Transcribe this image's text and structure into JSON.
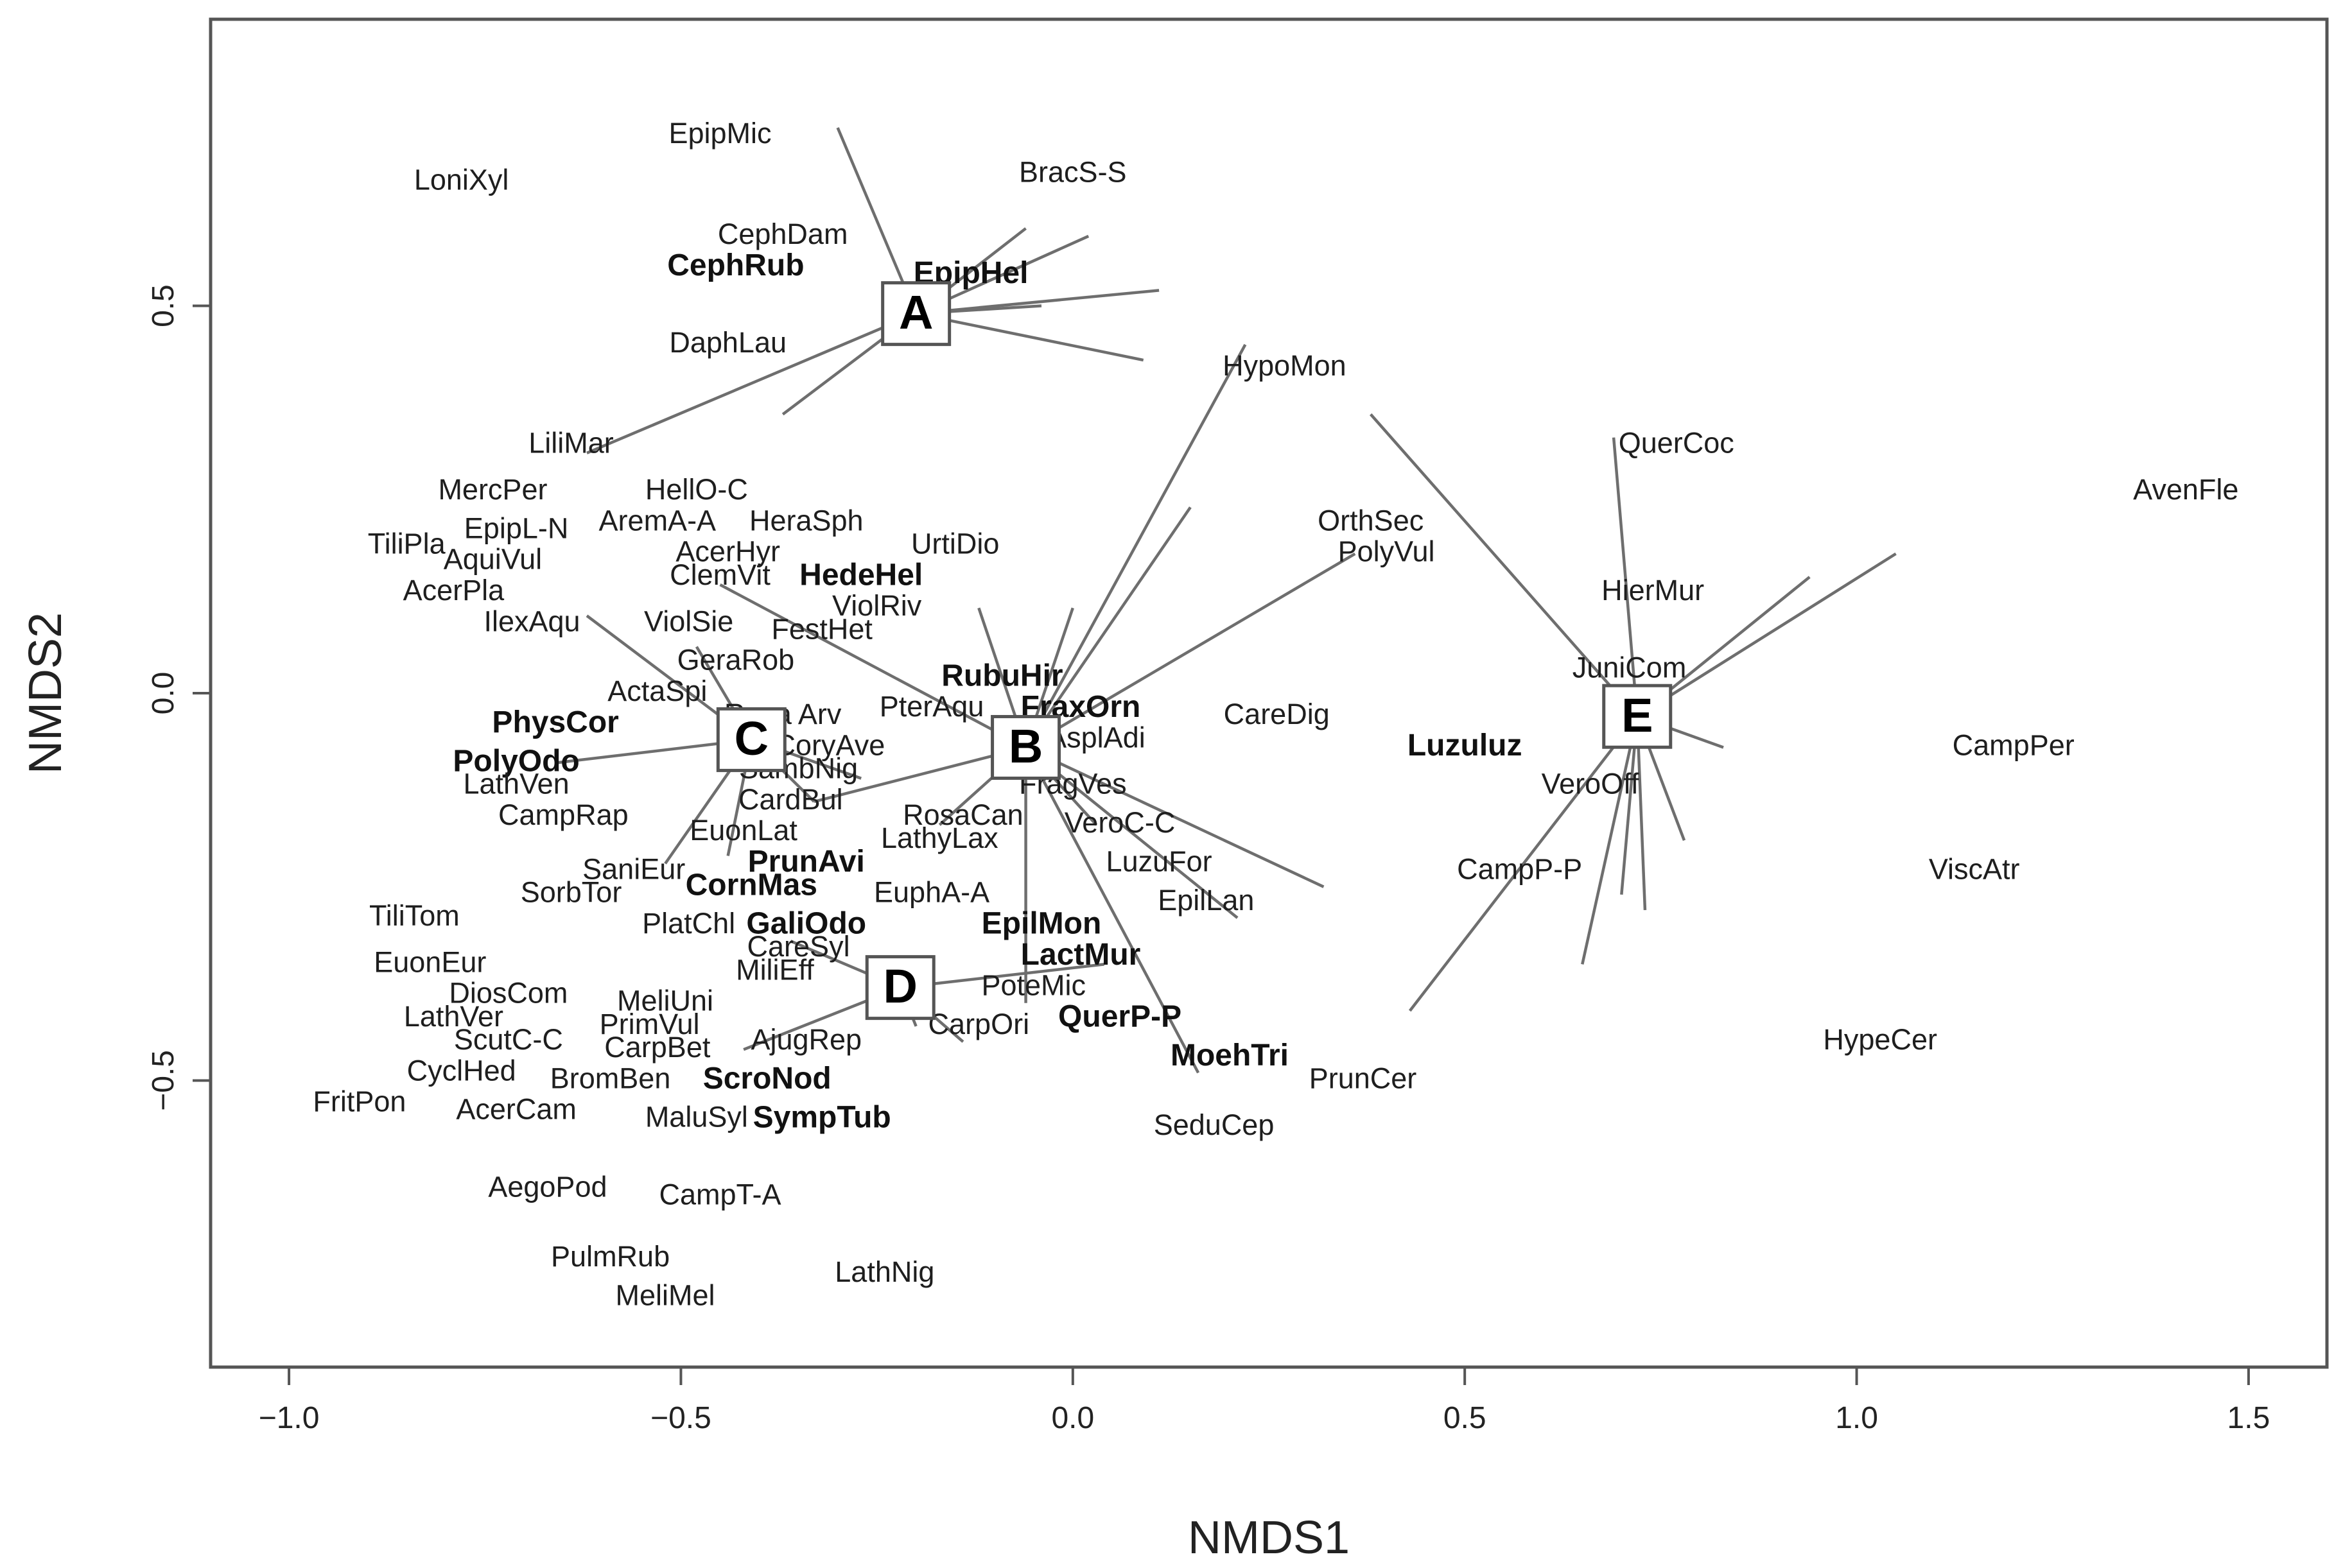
{
  "chart_data": {
    "type": "scatter",
    "xlabel": "NMDS1",
    "ylabel": "NMDS2",
    "xlim": [
      -1.1,
      1.6
    ],
    "ylim": [
      -0.87,
      0.87
    ],
    "x_ticks": [
      -1.0,
      -0.5,
      0.0,
      0.5,
      1.0,
      1.5
    ],
    "x_tick_labels": [
      "−1.0",
      "−0.5",
      "0.0",
      "0.5",
      "1.0",
      "1.5"
    ],
    "y_ticks": [
      -0.5,
      0.0,
      0.5
    ],
    "y_tick_labels": [
      "−0.5",
      "0.0",
      "0.5"
    ],
    "grid": false,
    "centroids": [
      {
        "label": "A",
        "x": -0.2,
        "y": 0.49
      },
      {
        "label": "B",
        "x": -0.06,
        "y": -0.07
      },
      {
        "label": "C",
        "x": -0.41,
        "y": -0.06
      },
      {
        "label": "D",
        "x": -0.22,
        "y": -0.38
      },
      {
        "label": "E",
        "x": 0.72,
        "y": -0.03
      }
    ],
    "spokes": [
      {
        "group": "A",
        "to": [
          -0.3,
          0.73
        ]
      },
      {
        "group": "A",
        "to": [
          -0.06,
          0.6
        ]
      },
      {
        "group": "A",
        "to": [
          0.02,
          0.59
        ]
      },
      {
        "group": "A",
        "to": [
          0.11,
          0.52
        ]
      },
      {
        "group": "A",
        "to": [
          -0.04,
          0.5
        ]
      },
      {
        "group": "A",
        "to": [
          0.09,
          0.43
        ]
      },
      {
        "group": "A",
        "to": [
          -0.62,
          0.31
        ]
      },
      {
        "group": "A",
        "to": [
          -0.37,
          0.36
        ]
      },
      {
        "group": "B",
        "to": [
          0.22,
          0.45
        ]
      },
      {
        "group": "B",
        "to": [
          0.15,
          0.24
        ]
      },
      {
        "group": "B",
        "to": [
          0.36,
          0.18
        ]
      },
      {
        "group": "B",
        "to": [
          0.0,
          0.11
        ]
      },
      {
        "group": "B",
        "to": [
          -0.45,
          0.14
        ]
      },
      {
        "group": "B",
        "to": [
          -0.12,
          0.11
        ]
      },
      {
        "group": "B",
        "to": [
          0.32,
          -0.25
        ]
      },
      {
        "group": "B",
        "to": [
          0.21,
          -0.29
        ]
      },
      {
        "group": "B",
        "to": [
          0.16,
          -0.49
        ]
      },
      {
        "group": "B",
        "to": [
          -0.06,
          -0.4
        ]
      },
      {
        "group": "B",
        "to": [
          0.03,
          -0.17
        ]
      },
      {
        "group": "B",
        "to": [
          -0.17,
          -0.17
        ]
      },
      {
        "group": "B",
        "to": [
          -0.33,
          -0.14
        ]
      },
      {
        "group": "C",
        "to": [
          -0.62,
          0.1
        ]
      },
      {
        "group": "C",
        "to": [
          -0.48,
          0.06
        ]
      },
      {
        "group": "C",
        "to": [
          -0.66,
          -0.09
        ]
      },
      {
        "group": "C",
        "to": [
          -0.52,
          -0.22
        ]
      },
      {
        "group": "C",
        "to": [
          -0.44,
          -0.21
        ]
      },
      {
        "group": "C",
        "to": [
          -0.27,
          -0.11
        ]
      },
      {
        "group": "C",
        "to": [
          -0.33,
          -0.14
        ]
      },
      {
        "group": "D",
        "to": [
          0.04,
          -0.35
        ]
      },
      {
        "group": "D",
        "to": [
          -0.14,
          -0.45
        ]
      },
      {
        "group": "D",
        "to": [
          -0.2,
          -0.43
        ]
      },
      {
        "group": "D",
        "to": [
          -0.42,
          -0.46
        ]
      },
      {
        "group": "D",
        "to": [
          -0.36,
          -0.32
        ]
      },
      {
        "group": "E",
        "to": [
          0.38,
          0.36
        ]
      },
      {
        "group": "E",
        "to": [
          0.69,
          0.33
        ]
      },
      {
        "group": "E",
        "to": [
          0.94,
          0.15
        ]
      },
      {
        "group": "E",
        "to": [
          1.05,
          0.18
        ]
      },
      {
        "group": "E",
        "to": [
          0.83,
          -0.07
        ]
      },
      {
        "group": "E",
        "to": [
          0.43,
          -0.41
        ]
      },
      {
        "group": "E",
        "to": [
          0.65,
          -0.35
        ]
      },
      {
        "group": "E",
        "to": [
          0.7,
          -0.26
        ]
      },
      {
        "group": "E",
        "to": [
          0.73,
          -0.28
        ]
      },
      {
        "group": "E",
        "to": [
          0.78,
          -0.19
        ]
      }
    ],
    "species": [
      {
        "label": "EpipMic",
        "x": -0.45,
        "y": 0.72
      },
      {
        "label": "BracS-S",
        "x": 0.0,
        "y": 0.67
      },
      {
        "label": "LoniXyl",
        "x": -0.78,
        "y": 0.66
      },
      {
        "label": "CephDam",
        "x": -0.37,
        "y": 0.59
      },
      {
        "label": "CephRub",
        "x": -0.43,
        "y": 0.55,
        "bold": true
      },
      {
        "label": "EpipHel",
        "x": -0.13,
        "y": 0.54,
        "bold": true
      },
      {
        "label": "DaphLau",
        "x": -0.44,
        "y": 0.45
      },
      {
        "label": "HypoMon",
        "x": 0.27,
        "y": 0.42
      },
      {
        "label": "LiliMar",
        "x": -0.64,
        "y": 0.32
      },
      {
        "label": "QuerCoc",
        "x": 0.77,
        "y": 0.32
      },
      {
        "label": "AvenFle",
        "x": 1.42,
        "y": 0.26
      },
      {
        "label": "MercPer",
        "x": -0.74,
        "y": 0.26
      },
      {
        "label": "HellO-C",
        "x": -0.48,
        "y": 0.26
      },
      {
        "label": "HeraSph",
        "x": -0.34,
        "y": 0.22
      },
      {
        "label": "AremA-A",
        "x": -0.53,
        "y": 0.22
      },
      {
        "label": "OrthSec",
        "x": 0.38,
        "y": 0.22
      },
      {
        "label": "EpipL-N",
        "x": -0.71,
        "y": 0.21
      },
      {
        "label": "TiliPla",
        "x": -0.85,
        "y": 0.19
      },
      {
        "label": "UrtiDio",
        "x": -0.15,
        "y": 0.19
      },
      {
        "label": "AcerHyr",
        "x": -0.44,
        "y": 0.18
      },
      {
        "label": "PolyVul",
        "x": 0.4,
        "y": 0.18
      },
      {
        "label": "AquiVul",
        "x": -0.74,
        "y": 0.17
      },
      {
        "label": "HedeHel",
        "x": -0.27,
        "y": 0.15,
        "bold": true
      },
      {
        "label": "ClemVit",
        "x": -0.45,
        "y": 0.15
      },
      {
        "label": "HierMur",
        "x": 0.74,
        "y": 0.13
      },
      {
        "label": "AcerPla",
        "x": -0.79,
        "y": 0.13
      },
      {
        "label": "ViolRiv",
        "x": -0.25,
        "y": 0.11
      },
      {
        "label": "IlexAqu",
        "x": -0.69,
        "y": 0.09
      },
      {
        "label": "ViolSie",
        "x": -0.49,
        "y": 0.09
      },
      {
        "label": "FestHet",
        "x": -0.32,
        "y": 0.08
      },
      {
        "label": "GeraRob",
        "x": -0.43,
        "y": 0.04
      },
      {
        "label": "JuniCom",
        "x": 0.71,
        "y": 0.03
      },
      {
        "label": "RubuHir",
        "x": -0.09,
        "y": 0.02,
        "bold": true
      },
      {
        "label": "ActaSpi",
        "x": -0.53,
        "y": 0.0
      },
      {
        "label": "PterAqu",
        "x": -0.18,
        "y": -0.02
      },
      {
        "label": "FraxOrn",
        "x": 0.01,
        "y": -0.02,
        "bold": true
      },
      {
        "label": "Rosa Arv",
        "x": -0.37,
        "y": -0.03
      },
      {
        "label": "CareDig",
        "x": 0.26,
        "y": -0.03
      },
      {
        "label": "PhysCor",
        "x": -0.66,
        "y": -0.04,
        "bold": true
      },
      {
        "label": "AsplAdi",
        "x": 0.03,
        "y": -0.06
      },
      {
        "label": "CoryAve",
        "x": -0.31,
        "y": -0.07
      },
      {
        "label": "Luzuluz",
        "x": 0.5,
        "y": -0.07,
        "bold": true
      },
      {
        "label": "CampPer",
        "x": 1.2,
        "y": -0.07
      },
      {
        "label": "PolyOdo",
        "x": -0.71,
        "y": -0.09,
        "bold": true
      },
      {
        "label": "SambNig",
        "x": -0.35,
        "y": -0.1
      },
      {
        "label": "LathVen",
        "x": -0.71,
        "y": -0.12
      },
      {
        "label": "VeroOff",
        "x": 0.66,
        "y": -0.12
      },
      {
        "label": "FragVes",
        "x": 0.0,
        "y": -0.12
      },
      {
        "label": "CardBul",
        "x": -0.36,
        "y": -0.14
      },
      {
        "label": "RosaCan",
        "x": -0.14,
        "y": -0.16
      },
      {
        "label": "VeroC-C",
        "x": 0.06,
        "y": -0.17
      },
      {
        "label": "CampRap",
        "x": -0.65,
        "y": -0.16
      },
      {
        "label": "EuonLat",
        "x": -0.42,
        "y": -0.18
      },
      {
        "label": "LathyLax",
        "x": -0.17,
        "y": -0.19
      },
      {
        "label": "PrunAvi",
        "x": -0.34,
        "y": -0.22,
        "bold": true
      },
      {
        "label": "LuzuFor",
        "x": 0.11,
        "y": -0.22
      },
      {
        "label": "SaniEur",
        "x": -0.56,
        "y": -0.23
      },
      {
        "label": "CampP-P",
        "x": 0.57,
        "y": -0.23
      },
      {
        "label": "ViscAtr",
        "x": 1.15,
        "y": -0.23
      },
      {
        "label": "CornMas",
        "x": -0.41,
        "y": -0.25,
        "bold": true
      },
      {
        "label": "EuphA-A",
        "x": -0.18,
        "y": -0.26
      },
      {
        "label": "SorbTor",
        "x": -0.64,
        "y": -0.26
      },
      {
        "label": "EpilLan",
        "x": 0.17,
        "y": -0.27
      },
      {
        "label": "TiliTom",
        "x": -0.84,
        "y": -0.29
      },
      {
        "label": "PlatChl",
        "x": -0.49,
        "y": -0.3
      },
      {
        "label": "GaliOdo",
        "x": -0.34,
        "y": -0.3,
        "bold": true
      },
      {
        "label": "EpilMon",
        "x": -0.04,
        "y": -0.3,
        "bold": true
      },
      {
        "label": "CareSyl",
        "x": -0.35,
        "y": -0.33
      },
      {
        "label": "LactMur",
        "x": 0.01,
        "y": -0.34,
        "bold": true
      },
      {
        "label": "EuonEur",
        "x": -0.82,
        "y": -0.35
      },
      {
        "label": "MiliEff",
        "x": -0.38,
        "y": -0.36
      },
      {
        "label": "PoteMic",
        "x": -0.05,
        "y": -0.38
      },
      {
        "label": "DiosCom",
        "x": -0.72,
        "y": -0.39
      },
      {
        "label": "MeliUni",
        "x": -0.52,
        "y": -0.4
      },
      {
        "label": "LathVer",
        "x": -0.79,
        "y": -0.42
      },
      {
        "label": "QuerP-P",
        "x": 0.06,
        "y": -0.42,
        "bold": true
      },
      {
        "label": "PrimVul",
        "x": -0.54,
        "y": -0.43
      },
      {
        "label": "CarpOri",
        "x": -0.12,
        "y": -0.43
      },
      {
        "label": "ScutC-C",
        "x": -0.72,
        "y": -0.45
      },
      {
        "label": "AjugRep",
        "x": -0.34,
        "y": -0.45
      },
      {
        "label": "HypeCer",
        "x": 1.03,
        "y": -0.45
      },
      {
        "label": "CarpBet",
        "x": -0.53,
        "y": -0.46
      },
      {
        "label": "MoehTri",
        "x": 0.2,
        "y": -0.47,
        "bold": true
      },
      {
        "label": "CyclHed",
        "x": -0.78,
        "y": -0.49
      },
      {
        "label": "PrunCer",
        "x": 0.37,
        "y": -0.5
      },
      {
        "label": "BromBen",
        "x": -0.59,
        "y": -0.5
      },
      {
        "label": "ScroNod",
        "x": -0.39,
        "y": -0.5,
        "bold": true
      },
      {
        "label": "FritPon",
        "x": -0.91,
        "y": -0.53
      },
      {
        "label": "AcerCam",
        "x": -0.71,
        "y": -0.54
      },
      {
        "label": "MaluSyl",
        "x": -0.48,
        "y": -0.55
      },
      {
        "label": "SympTub",
        "x": -0.32,
        "y": -0.55,
        "bold": true
      },
      {
        "label": "SeduCep",
        "x": 0.18,
        "y": -0.56
      },
      {
        "label": "AegoPod",
        "x": -0.67,
        "y": -0.64
      },
      {
        "label": "CampT-A",
        "x": -0.45,
        "y": -0.65
      },
      {
        "label": "PulmRub",
        "x": -0.59,
        "y": -0.73
      },
      {
        "label": "LathNig",
        "x": -0.24,
        "y": -0.75
      },
      {
        "label": "MeliMel",
        "x": -0.52,
        "y": -0.78
      }
    ]
  }
}
